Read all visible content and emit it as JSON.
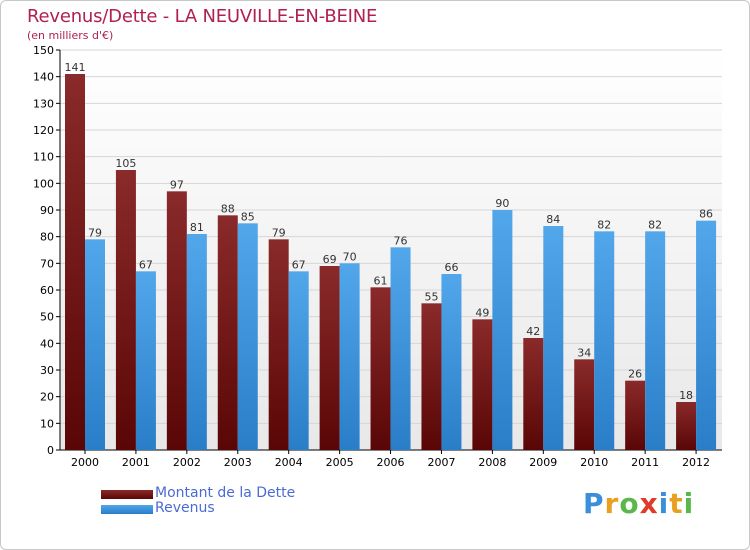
{
  "title": "Revenus/Dette - LA NEUVILLE-EN-BEINE",
  "subtitle": "(en milliers d'€)",
  "colors": {
    "debt": "#7a1414",
    "revenue": "#3a8fdb",
    "title": "#b02050",
    "legend_text": "#4a6bd6"
  },
  "logo": {
    "letters": [
      "P",
      "r",
      "o",
      "x",
      "i",
      "t",
      "i"
    ],
    "colors": [
      "#3a8fdb",
      "#e8a020",
      "#5ab84a",
      "#e03a2a",
      "#3a8fdb",
      "#e8a020",
      "#5ab84a"
    ]
  },
  "chart_data": {
    "type": "bar",
    "title": "Revenus/Dette - LA NEUVILLE-EN-BEINE",
    "subtitle": "(en milliers d'€)",
    "xlabel": "",
    "ylabel": "",
    "categories": [
      "2000",
      "2001",
      "2002",
      "2003",
      "2004",
      "2005",
      "2006",
      "2007",
      "2008",
      "2009",
      "2010",
      "2011",
      "2012"
    ],
    "series": [
      {
        "name": "Montant de la Dette",
        "values": [
          141,
          105,
          97,
          88,
          79,
          69,
          61,
          55,
          49,
          42,
          34,
          26,
          18
        ]
      },
      {
        "name": "Revenus",
        "values": [
          79,
          67,
          81,
          85,
          67,
          70,
          76,
          66,
          90,
          84,
          82,
          82,
          86
        ]
      }
    ],
    "ylim": [
      0,
      150
    ],
    "ytick_step": 10,
    "grid": true,
    "legend": "bottom-left"
  }
}
